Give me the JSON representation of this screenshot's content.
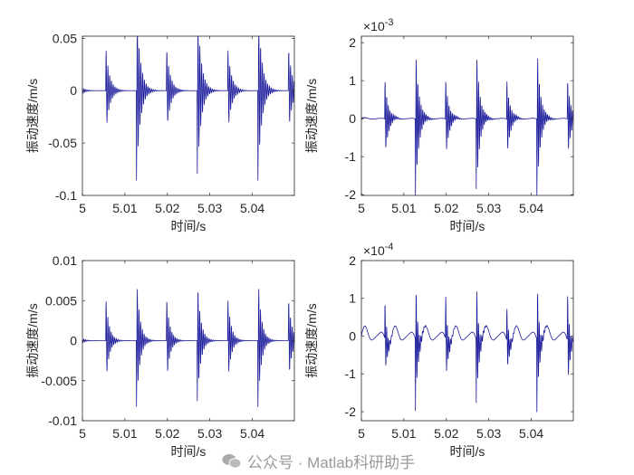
{
  "colors": {
    "line": "#1c1c9c",
    "axis": "#262626",
    "background": "#ffffff"
  },
  "watermark": {
    "text": "公众号 · Matlab科研助手",
    "icon": "wechat-icon"
  },
  "chart_data": [
    {
      "type": "line",
      "xlabel": "时间/s",
      "ylabel": "振动速度/m/s",
      "exponent": "",
      "xlim": [
        5,
        5.0499
      ],
      "ylim": [
        -0.1,
        0.052
      ],
      "xticks": [
        5,
        5.01,
        5.02,
        5.03,
        5.04
      ],
      "xtick_labels": [
        "5",
        "5.01",
        "5.02",
        "5.03",
        "5.04"
      ],
      "yticks": [
        -0.1,
        -0.05,
        0,
        0.05
      ],
      "ytick_labels": [
        "-0.1",
        "-0.05",
        "0",
        "0.05"
      ],
      "impulse_times": [
        4.9985,
        5.0055,
        5.0127,
        5.0198,
        5.027,
        5.0342,
        5.0413,
        5.0485
      ],
      "impulse_amplitudes": [
        0.015,
        0.042,
        0.088,
        0.042,
        0.088,
        0.042,
        0.088,
        0.042
      ],
      "oscillation_hz": 2400,
      "decay_s": 0.0009,
      "background_wave": 0
    },
    {
      "type": "line",
      "xlabel": "时间/s",
      "ylabel": "振动速度/m/s",
      "exponent": "-3",
      "xlim": [
        5,
        5.0499
      ],
      "ylim": [
        -2.02,
        2.17
      ],
      "xticks": [
        5,
        5.01,
        5.02,
        5.03,
        5.04
      ],
      "xtick_labels": [
        "5",
        "5.01",
        "5.02",
        "5.03",
        "5.04"
      ],
      "yticks": [
        -2,
        -1,
        0,
        1,
        2
      ],
      "ytick_labels": [
        "-2",
        "-1",
        "0",
        "1",
        "2"
      ],
      "impulse_times": [
        4.9985,
        5.0055,
        5.0127,
        5.0198,
        5.027,
        5.0342,
        5.0413,
        5.0485
      ],
      "impulse_amplitudes": [
        0.15,
        1.1,
        2.1,
        1.1,
        2.1,
        1.1,
        2.1,
        1.1
      ],
      "oscillation_hz": 2600,
      "decay_s": 0.0008,
      "background_wave": 0.03
    },
    {
      "type": "line",
      "xlabel": "时间/s",
      "ylabel": "振动速度/m/s",
      "exponent": "",
      "xlim": [
        5,
        5.0499
      ],
      "ylim": [
        -0.01,
        0.01
      ],
      "xticks": [
        5,
        5.01,
        5.02,
        5.03,
        5.04
      ],
      "xtick_labels": [
        "5",
        "5.01",
        "5.02",
        "5.03",
        "5.04"
      ],
      "yticks": [
        -0.01,
        -0.005,
        0,
        0.005,
        0.01
      ],
      "ytick_labels": [
        "-0.01",
        "-0.005",
        "0",
        "0.005",
        "0.01"
      ],
      "impulse_times": [
        4.9985,
        5.0055,
        5.0127,
        5.0198,
        5.027,
        5.0342,
        5.0413,
        5.0485
      ],
      "impulse_amplitudes": [
        0.002,
        0.0055,
        0.0085,
        0.0055,
        0.0085,
        0.0055,
        0.0085,
        0.0055
      ],
      "oscillation_hz": 2500,
      "decay_s": 0.0008,
      "background_wave": 0
    },
    {
      "type": "line",
      "xlabel": "时间/s",
      "ylabel": "振动速度/m/s",
      "exponent": "-4",
      "xlim": [
        5,
        5.0499
      ],
      "ylim": [
        -2.24,
        2
      ],
      "xticks": [
        5,
        5.01,
        5.02,
        5.03,
        5.04
      ],
      "xtick_labels": [
        "5",
        "5.01",
        "5.02",
        "5.03",
        "5.04"
      ],
      "yticks": [
        -2,
        -1,
        0,
        1,
        2
      ],
      "ytick_labels": [
        "-2",
        "-1",
        "0",
        "1",
        "2"
      ],
      "impulse_times": [
        4.9985,
        5.0055,
        5.0127,
        5.0198,
        5.027,
        5.0342,
        5.0413,
        5.0485
      ],
      "impulse_amplitudes": [
        0.3,
        1.1,
        2.0,
        1.3,
        2.0,
        1.0,
        2.0,
        1.4
      ],
      "oscillation_hz": 2700,
      "decay_s": 0.0005,
      "background_wave": 0.3
    }
  ]
}
